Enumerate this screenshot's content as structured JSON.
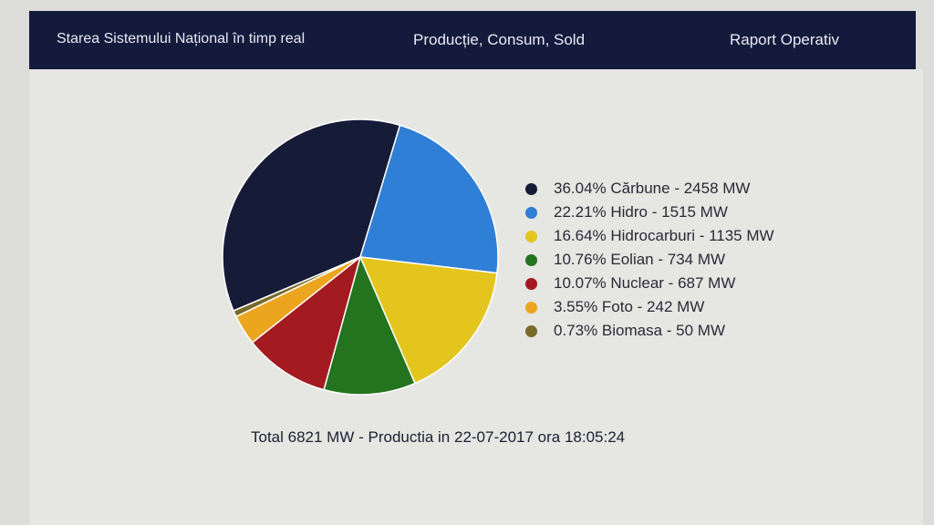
{
  "nav": {
    "items": [
      {
        "label": "Starea Sistemului Național în timp real"
      },
      {
        "label": "Producție, Consum, Sold"
      },
      {
        "label": "Raport Operativ"
      }
    ]
  },
  "footer": {
    "text": "Total 6821 MW - Productia in 22-07-2017 ora 18:05:24"
  },
  "chart_data": {
    "type": "pie",
    "total_mw": 6821,
    "slices": [
      {
        "label": "36.04% Cărbune - 2458 MW",
        "name": "Cărbune",
        "percent": 36.04,
        "value": 2458,
        "color": "#161b38"
      },
      {
        "label": "22.21% Hidro - 1515 MW",
        "name": "Hidro",
        "percent": 22.21,
        "value": 1515,
        "color": "#2f7fd6"
      },
      {
        "label": "16.64% Hidrocarburi - 1135 MW",
        "name": "Hidrocarburi",
        "percent": 16.64,
        "value": 1135,
        "color": "#e3c51e"
      },
      {
        "label": "10.76% Eolian - 734 MW",
        "name": "Eolian",
        "percent": 10.76,
        "value": 734,
        "color": "#23731f"
      },
      {
        "label": "10.07% Nuclear - 687 MW",
        "name": "Nuclear",
        "percent": 10.07,
        "value": 687,
        "color": "#a31a20"
      },
      {
        "label": "3.55% Foto - 242 MW",
        "name": "Foto",
        "percent": 3.55,
        "value": 242,
        "color": "#eca51f"
      },
      {
        "label": "0.73% Biomasa - 50 MW",
        "name": "Biomasa",
        "percent": 0.73,
        "value": 50,
        "color": "#7a6a2a"
      }
    ]
  }
}
